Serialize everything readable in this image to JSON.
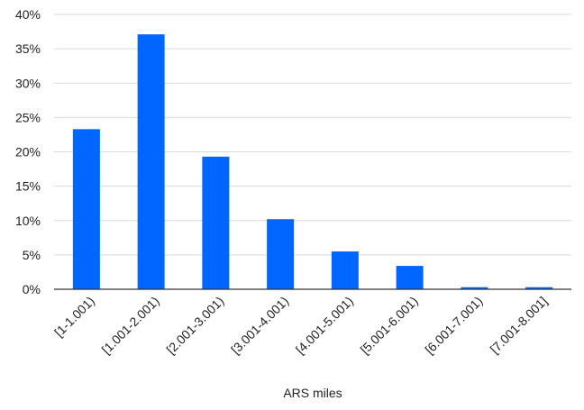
{
  "chart_data": {
    "type": "bar",
    "title": "",
    "xlabel": "ARS miles",
    "ylabel": "",
    "categories": [
      "[1-1.001)",
      "[1.001-2.001)",
      "[2.001-3.001)",
      "[3.001-4.001)",
      "[4.001-5.001)",
      "[5.001-6.001)",
      "[6.001-7.001)",
      "[7.001-8.001]"
    ],
    "values": [
      23.3,
      37.1,
      19.3,
      10.2,
      5.5,
      3.4,
      0.3,
      0.3
    ],
    "value_unit": "%",
    "ylim": [
      0,
      40
    ],
    "yticks": [
      0,
      5,
      10,
      15,
      20,
      25,
      30,
      35,
      40
    ],
    "ytick_labels": [
      "0%",
      "5%",
      "10%",
      "15%",
      "20%",
      "25%",
      "30%",
      "35%",
      "40%"
    ],
    "grid": true,
    "legend": "none",
    "colors": {
      "bar": "#0066ff",
      "grid": "#d9d9d9",
      "axis": "#333333",
      "text": "#222222"
    }
  }
}
